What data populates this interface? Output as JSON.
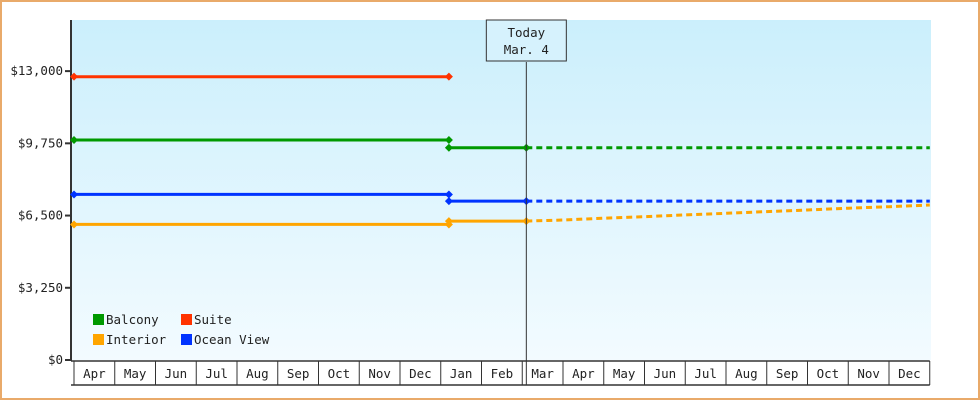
{
  "chart_data": {
    "type": "line",
    "title": "",
    "xlabel": "",
    "ylabel": "",
    "ylim": [
      0,
      15300
    ],
    "y_ticks": [
      0,
      3250,
      6500,
      9750,
      13000
    ],
    "y_tick_labels": [
      "$0",
      "$3,250",
      "$6,500",
      "$9,750",
      "$13,000"
    ],
    "x_ticks": [
      "Apr",
      "May",
      "Jun",
      "Jul",
      "Aug",
      "Sep",
      "Oct",
      "Nov",
      "Dec",
      "Jan",
      "Feb",
      "Mar",
      "Apr",
      "May",
      "Jun",
      "Jul",
      "Aug",
      "Sep",
      "Oct",
      "Nov",
      "Dec"
    ],
    "grid": false,
    "legend_position": "bottom-left",
    "today_marker": {
      "line1": "Today",
      "line2": "Mar. 4",
      "month": 11,
      "day": 4
    },
    "series": [
      {
        "name": "Balcony",
        "color": "#009900",
        "segments": [
          {
            "style": "solid",
            "points": [
              {
                "month": 0,
                "day": 1,
                "value": 9900
              },
              {
                "month": 9,
                "day": 7,
                "value": 9900
              }
            ]
          },
          {
            "style": "solid",
            "points": [
              {
                "month": 9,
                "day": 7,
                "value": 9550
              },
              {
                "month": 11,
                "day": 4,
                "value": 9550
              }
            ]
          },
          {
            "style": "dashed",
            "points": [
              {
                "month": 11,
                "day": 4,
                "value": 9550
              },
              {
                "month": 20,
                "day": 31,
                "value": 9550
              }
            ]
          }
        ]
      },
      {
        "name": "Suite",
        "color": "#ff3300",
        "segments": [
          {
            "style": "solid",
            "points": [
              {
                "month": 0,
                "day": 1,
                "value": 12750
              },
              {
                "month": 9,
                "day": 7,
                "value": 12750
              }
            ]
          }
        ]
      },
      {
        "name": "Interior",
        "color": "#ffa500",
        "segments": [
          {
            "style": "solid",
            "points": [
              {
                "month": 0,
                "day": 1,
                "value": 6100
              },
              {
                "month": 9,
                "day": 7,
                "value": 6100
              }
            ]
          },
          {
            "style": "solid",
            "points": [
              {
                "month": 9,
                "day": 7,
                "value": 6250
              },
              {
                "month": 11,
                "day": 4,
                "value": 6250
              }
            ]
          },
          {
            "style": "dashed",
            "points": [
              {
                "month": 11,
                "day": 4,
                "value": 6250
              },
              {
                "month": 12,
                "day": 1,
                "value": 6300
              },
              {
                "month": 13,
                "day": 1,
                "value": 6380
              },
              {
                "month": 14,
                "day": 1,
                "value": 6450
              },
              {
                "month": 15,
                "day": 1,
                "value": 6530
              },
              {
                "month": 16,
                "day": 1,
                "value": 6600
              },
              {
                "month": 17,
                "day": 1,
                "value": 6680
              },
              {
                "month": 18,
                "day": 1,
                "value": 6750
              },
              {
                "month": 19,
                "day": 1,
                "value": 6830
              },
              {
                "month": 20,
                "day": 1,
                "value": 6900
              },
              {
                "month": 20,
                "day": 31,
                "value": 6975
              }
            ]
          }
        ]
      },
      {
        "name": "Ocean View",
        "color": "#0033ff",
        "segments": [
          {
            "style": "solid",
            "points": [
              {
                "month": 0,
                "day": 1,
                "value": 7450
              },
              {
                "month": 9,
                "day": 7,
                "value": 7450
              }
            ]
          },
          {
            "style": "solid",
            "points": [
              {
                "month": 9,
                "day": 7,
                "value": 7150
              },
              {
                "month": 11,
                "day": 4,
                "value": 7150
              }
            ]
          },
          {
            "style": "dashed",
            "points": [
              {
                "month": 11,
                "day": 4,
                "value": 7150
              },
              {
                "month": 20,
                "day": 31,
                "value": 7150
              }
            ]
          }
        ]
      }
    ]
  }
}
